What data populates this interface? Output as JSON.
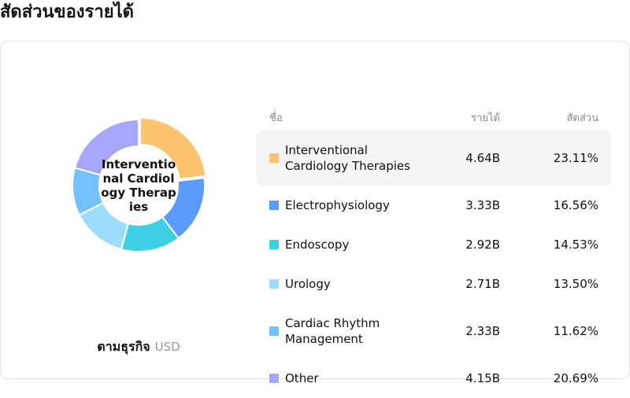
{
  "title": "สัดส่วนของรายได้",
  "chart_data": {
    "type": "donut",
    "center_label": "Interventional Cardiology Therapies",
    "subtitle": "ตามธุรกิจ",
    "unit": "USD",
    "columns": [
      "ชื่อ",
      "รายได้",
      "สัดส่วน"
    ],
    "categories": [
      "Interventional Cardiology Therapies",
      "Electrophysiology",
      "Endoscopy",
      "Urology",
      "Cardiac Rhythm Management",
      "Other"
    ],
    "values": [
      23.11,
      16.56,
      14.53,
      13.5,
      11.62,
      20.69
    ],
    "value_labels": [
      "23.11%",
      "16.56%",
      "14.53%",
      "13.50%",
      "11.62%",
      "20.69%"
    ],
    "revenue_labels": [
      "4.64B",
      "3.33B",
      "2.92B",
      "2.71B",
      "2.33B",
      "4.15B"
    ],
    "colors": [
      "#fdc36f",
      "#5b9bfb",
      "#3ecfe6",
      "#9edcfb",
      "#73c0fb",
      "#a6a6fb"
    ]
  }
}
